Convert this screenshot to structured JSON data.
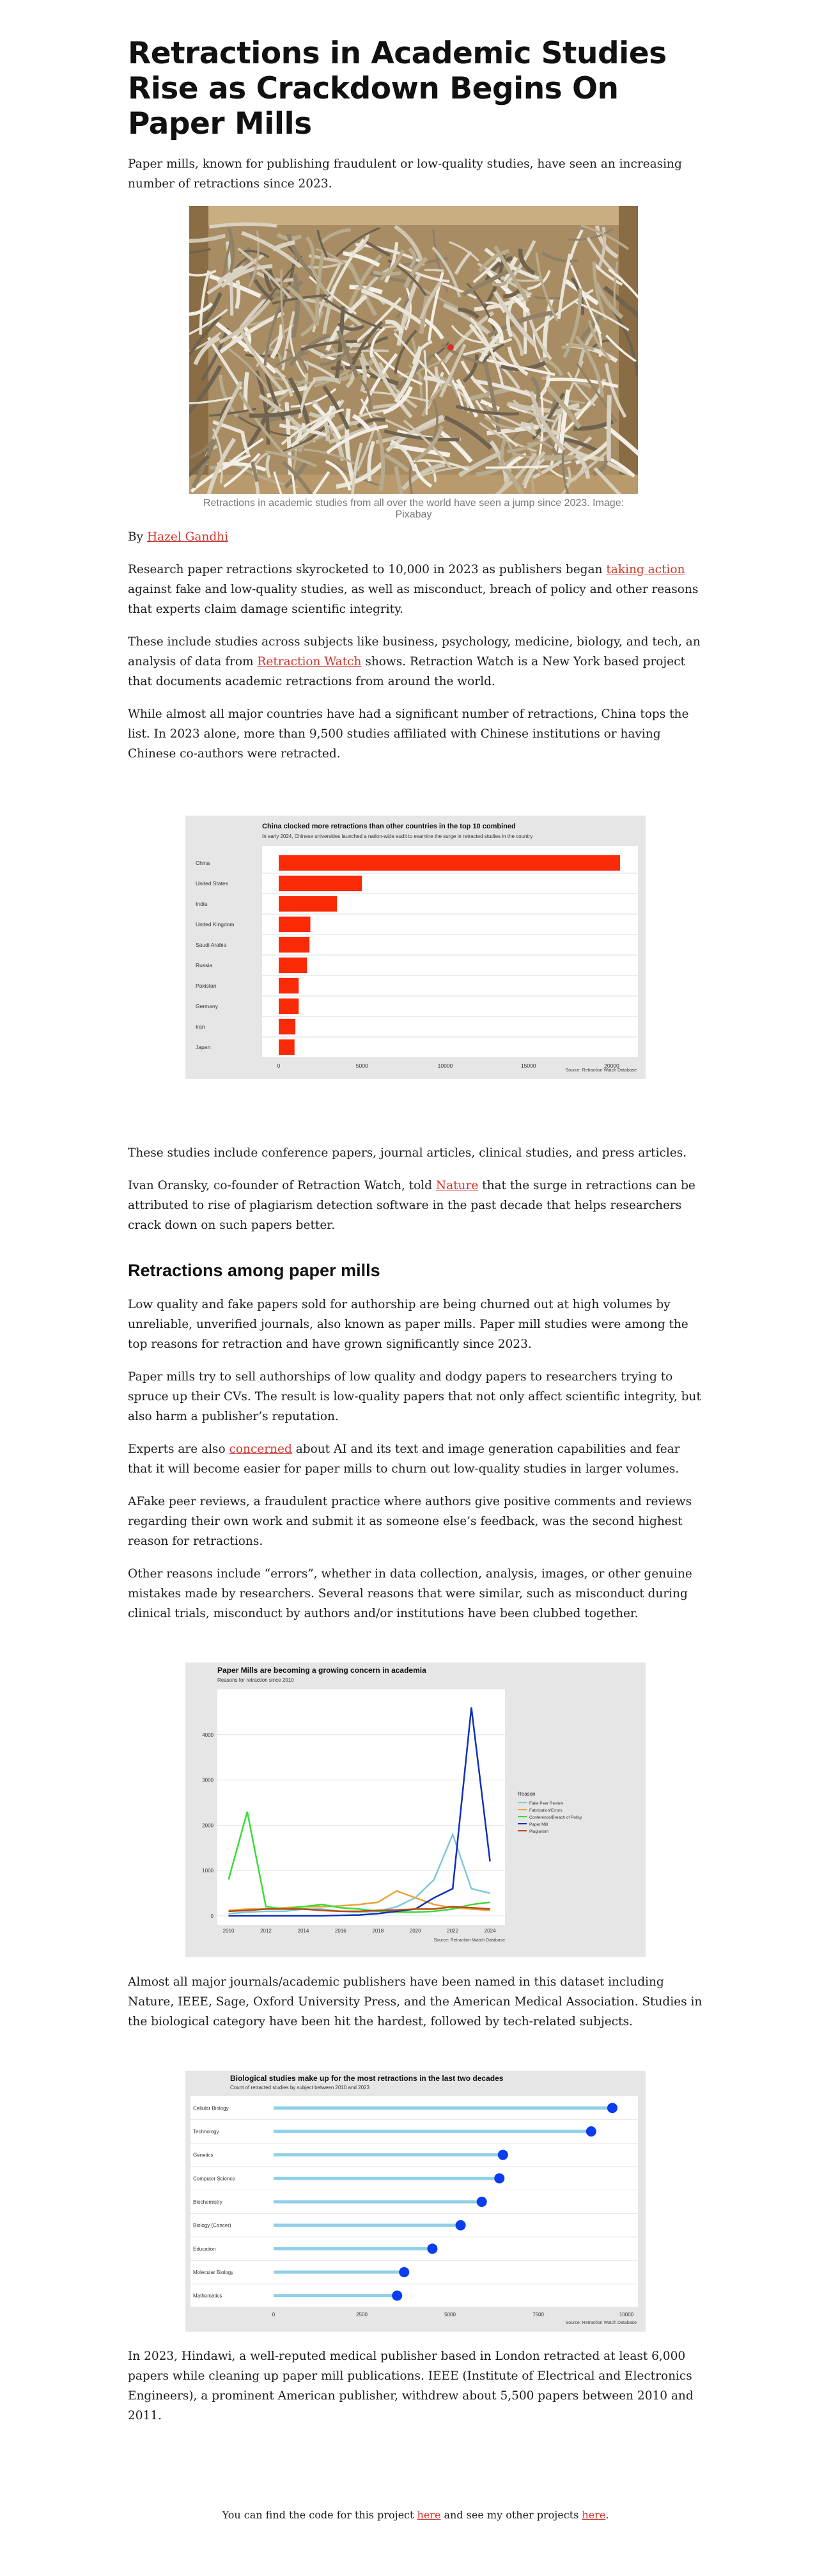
{
  "header": {
    "title": "Retractions in Academic Studies Rise as Crackdown Begins On Paper Mills",
    "subtitle": "Paper mills, known for publishing fraudulent or low-quality studies, have seen an increasing number of retractions since 2023."
  },
  "hero": {
    "caption": "Retractions in academic studies from all over the world have seen a jump since 2023. Image: Pixabay"
  },
  "byline": {
    "prefix": "By ",
    "author": "Hazel Gandhi"
  },
  "paragraphs": {
    "p1_before": "Research paper retractions skyrocketed to 10,000 in 2023 as publishers began ",
    "p1_link": "taking action",
    "p1_after": " against fake and low-quality studies, as well as misconduct, breach of policy and other reasons that experts claim damage scientific integrity.",
    "p2_before": "These include studies across subjects like business, psychology, medicine, biology, and tech, an analysis of data from ",
    "p2_link": "Retraction Watch",
    "p2_after": " shows. Retraction Watch is a New York based project that documents academic retractions from around the world.",
    "p3": "While almost all major countries have had a significant number of retractions, China tops the list. In 2023 alone, more than 9,500 studies affiliated with Chinese institutions or having Chinese co-authors were retracted.",
    "p4": "These studies include conference papers, journal articles, clinical studies, and press articles.",
    "p5_before": "Ivan Oransky, co-founder of Retraction Watch, told ",
    "p5_link": "Nature",
    "p5_after": " that the surge in retractions can be attributed to rise of plagiarism detection software in the past decade that helps researchers crack down on such papers better.",
    "section_heading": "Retractions among paper mills",
    "p6": "Low quality and fake papers sold for authorship are being churned out at high volumes by unreliable, unverified journals, also known as paper mills. Paper mill studies were among the top reasons for retraction and have grown significantly since 2023.",
    "p7": "Paper mills try to sell authorships of low quality and dodgy papers to researchers trying to spruce up their CVs. The result is low-quality papers that not only affect scientific integrity, but also harm a publisher’s reputation.",
    "p8_before": "Experts are also ",
    "p8_link": "concerned",
    "p8_after": " about AI and its text and image generation capabilities and fear that it will become easier for paper mills to churn out low-quality studies in larger volumes.",
    "p9": "AFake peer reviews, a fraudulent practice where authors give positive comments and reviews regarding their own work and submit it as someone else’s feedback, was the second highest reason for retractions.",
    "p10": "Other reasons include “errors”, whether in data collection, analysis, images, or other genuine mistakes made by researchers. Several reasons that were similar, such as misconduct during clinical trials, misconduct by authors and/or institutions have been clubbed together.",
    "p11": "Almost all major journals/academic publishers have been named in this dataset including Nature, IEEE, Sage, Oxford University Press, and the American Medical Association. Studies in the biological category have been hit the hardest, followed by tech-related subjects.",
    "p12": "In 2023, Hindawi, a well-reputed medical publisher based in London retracted at least 6,000 papers while cleaning up paper mill publications. IEEE (Institute of Electrical and Electronics Engineers), a prominent American publisher, withdrew about 5,500 papers between 2010 and 2011."
  },
  "footer": {
    "t1": "You can find the code for this project ",
    "link1": "here",
    "t2": " and see my other projects ",
    "link2": "here",
    "t3": "."
  },
  "colors": {
    "link": "#d0342c",
    "bar": "#fa2a06",
    "lollipop_dot": "#0a3cf0",
    "lollipop_stem": "#8fd0e6",
    "chart_bg": "#e6e6e6"
  },
  "chart_data": [
    {
      "type": "bar",
      "orientation": "horizontal",
      "title": "China clocked more retractions than other countries in the top 10 combined",
      "subtitle": "In early 2024, Chinese universities launched a nation-wide audit to examine the surge in retracted studies in the country",
      "source": "Source: Retraction Watch Database",
      "categories": [
        "China",
        "United States",
        "India",
        "United Kingdom",
        "Saudi Arabia",
        "Russia",
        "Pakistan",
        "Germany",
        "Iran",
        "Japan"
      ],
      "values": [
        20500,
        5000,
        3500,
        1900,
        1850,
        1700,
        1200,
        1200,
        1000,
        950
      ],
      "xticks": [
        "0",
        "5000",
        "10000",
        "15000",
        "20000"
      ],
      "xlim": [
        0,
        21500
      ]
    },
    {
      "type": "line",
      "title": "Paper Mills are becoming a growing concern in academia",
      "subtitle": "Reasons for retraction since 2010",
      "source": "Source: Retraction Watch Database",
      "legend_title": "Reason",
      "legend_placement": "right",
      "x": [
        2010,
        2011,
        2012,
        2013,
        2014,
        2015,
        2016,
        2017,
        2018,
        2019,
        2020,
        2021,
        2022,
        2023,
        2024
      ],
      "xticks": [
        "2010",
        "2012",
        "2014",
        "2016",
        "2018",
        "2020",
        "2022",
        "2024"
      ],
      "yticks": [
        "0",
        "1000",
        "2000",
        "3000",
        "4000"
      ],
      "ylim": [
        0,
        5000
      ],
      "series": [
        {
          "name": "Fake Peer Review",
          "color": "#7fc9d6",
          "values": [
            50,
            80,
            100,
            100,
            150,
            150,
            100,
            80,
            100,
            200,
            400,
            800,
            1800,
            600,
            500
          ]
        },
        {
          "name": "Fabrication/Errors",
          "color": "#e8a33a",
          "values": [
            120,
            150,
            150,
            180,
            200,
            200,
            220,
            250,
            300,
            550,
            400,
            250,
            180,
            150,
            120
          ]
        },
        {
          "name": "Conference/Breach of Policy",
          "color": "#37dd37",
          "values": [
            800,
            2300,
            200,
            150,
            200,
            250,
            180,
            150,
            100,
            80,
            80,
            100,
            150,
            250,
            300
          ]
        },
        {
          "name": "Paper Mill",
          "color": "#1030b8",
          "values": [
            0,
            0,
            0,
            0,
            0,
            0,
            10,
            20,
            50,
            100,
            150,
            400,
            600,
            4600,
            1200
          ]
        },
        {
          "name": "Plagiarism",
          "color": "#b84a1a",
          "values": [
            100,
            120,
            150,
            150,
            150,
            120,
            100,
            100,
            120,
            130,
            150,
            150,
            200,
            180,
            150
          ]
        }
      ]
    },
    {
      "type": "lollipop",
      "title": "Biological studies make up for the most retractions in the last two decades",
      "subtitle": "Count of retracted studies by subject between 2010 and 2023",
      "source": "Source: Retraction Watch Database",
      "categories": [
        "Cellular Biology",
        "Technology",
        "Genetics",
        "Computer Science",
        "Biochemistry",
        "Biology (Cancer)",
        "Education",
        "Molecular Biology",
        "Mathematics"
      ],
      "values": [
        9600,
        9000,
        6500,
        6400,
        5900,
        5300,
        4500,
        3700,
        3500
      ],
      "xticks": [
        "0",
        "2500",
        "5000",
        "7500",
        "10000"
      ],
      "xlim": [
        0,
        10000
      ]
    }
  ]
}
